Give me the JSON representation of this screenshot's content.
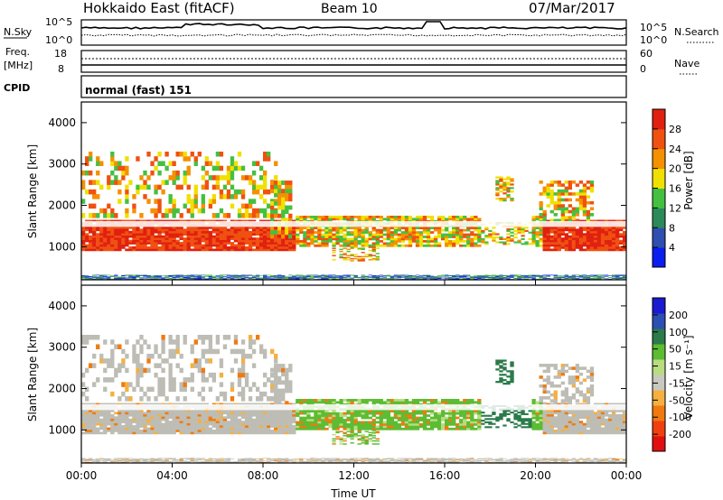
{
  "header": {
    "title": "Hokkaido East (fitACF)",
    "beam": "Beam 10",
    "date": "07/Mar/2017"
  },
  "noise_panel": {
    "left_label": "N.Sky",
    "right_label": "N.Search",
    "left_ticks": [
      "10^5",
      "10^0"
    ],
    "right_ticks": [
      "10^5",
      "10^0"
    ]
  },
  "freq_panel": {
    "left_label_1": "Freq.",
    "left_label_2": "[MHz]",
    "left_ticks": [
      "18",
      "8"
    ],
    "right_label": "Nave",
    "right_ticks": [
      "60",
      "0"
    ]
  },
  "cpid_panel": {
    "label": "CPID",
    "program": "normal (fast) 151"
  },
  "colors": {
    "power_scale": [
      "#0a1ef0",
      "#2e4fb0",
      "#2a8a5a",
      "#44c040",
      "#f0e000",
      "#f59000",
      "#f05010",
      "#e02010"
    ],
    "velocity_scale": [
      "#e01010",
      "#f04010",
      "#f07a10",
      "#f5b040",
      "#c8c8c0",
      "#b8dc80",
      "#5cbc32",
      "#2a7a4a",
      "#2b4fb2",
      "#1a1ad0"
    ],
    "ground_scatter": "#bdbdb5"
  },
  "chart_data": [
    {
      "type": "heatmap",
      "name": "power",
      "ylabel": "Slant Range [km]",
      "yticks": [
        1000,
        2000,
        3000,
        4000
      ],
      "ylim": [
        200,
        4500
      ],
      "colorbar": {
        "label": "Power [dB]",
        "ticks": [
          4,
          8,
          12,
          16,
          20,
          24,
          28
        ]
      }
    },
    {
      "type": "heatmap",
      "name": "velocity",
      "ylabel": "Slant Range [km]",
      "yticks": [
        1000,
        2000,
        3000,
        4000
      ],
      "ylim": [
        200,
        4500
      ],
      "colorbar": {
        "label": "Velocity [m s⁻¹]",
        "ticks": [
          200,
          100,
          50,
          15,
          -15,
          -50,
          -100,
          -200
        ]
      }
    }
  ],
  "time_axis": {
    "label": "Time UT",
    "ticks": [
      "00:00",
      "04:00",
      "08:00",
      "12:00",
      "16:00",
      "20:00",
      "00:00"
    ]
  }
}
